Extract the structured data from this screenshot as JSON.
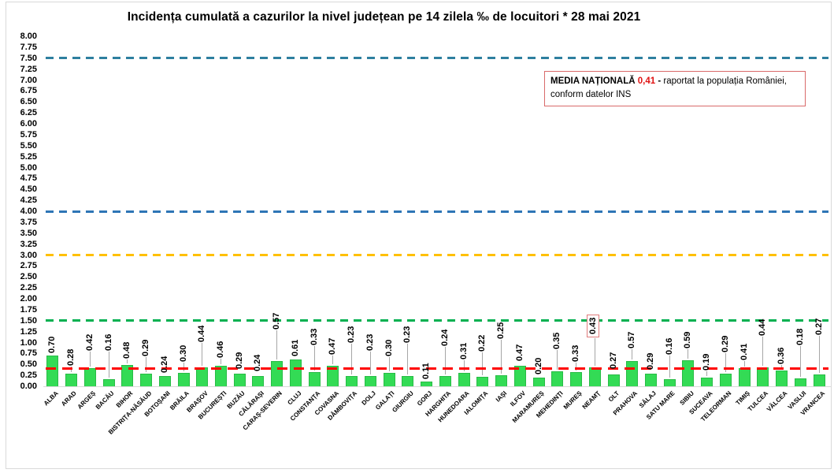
{
  "title": "Incidența cumulată a cazurilor la nivel județean pe 14 zilela ‰ de locuitori *  28 mai 2021",
  "note": {
    "bold": "MEDIA NAȚIONALĂ ",
    "value": "0,41",
    "sep": " - ",
    "rest": "raportat la populația României, conform datelor INS"
  },
  "chart_data": {
    "type": "bar",
    "title": "Incidența cumulată a cazurilor la nivel județean pe 14 zilela ‰ de locuitori *  28 mai 2021",
    "xlabel": "",
    "ylabel": "",
    "ylim": [
      0,
      8
    ],
    "ytick_step": 0.25,
    "grid": false,
    "bar_color": "#33db55",
    "bar_border_color": "#28bb46",
    "categories": [
      "ALBA",
      "ARAD",
      "ARGEȘ",
      "BACĂU",
      "BIHOR",
      "BISTRIȚA-NĂSĂUD",
      "BOTOȘANI",
      "BRĂILA",
      "BRAȘOV",
      "BUCUREȘTI",
      "BUZĂU",
      "CĂLĂRAȘI",
      "CARAȘ-SEVERIN",
      "CLUJ",
      "CONSTANȚA",
      "COVASNA",
      "DÂMBOVIȚA",
      "DOLJ",
      "GALAȚI",
      "GIURGIU",
      "GORJ",
      "HARGHITA",
      "HUNEDOARA",
      "IALOMIȚA",
      "IAȘI",
      "ILFOV",
      "MARAMUREȘ",
      "MEHEDINȚI",
      "MUREȘ",
      "NEAMȚ",
      "OLT",
      "PRAHOVA",
      "SĂLAJ",
      "SATU MARE",
      "SIBIU",
      "SUCEAVA",
      "TELEORMAN",
      "TIMIȘ",
      "TULCEA",
      "VÂLCEA",
      "VASLUI",
      "VRANCEA"
    ],
    "values": [
      0.7,
      0.28,
      0.42,
      0.16,
      0.48,
      0.29,
      0.24,
      0.3,
      0.44,
      0.46,
      0.29,
      0.24,
      0.57,
      0.61,
      0.33,
      0.47,
      0.23,
      0.23,
      0.3,
      0.23,
      0.11,
      0.24,
      0.31,
      0.22,
      0.25,
      0.47,
      0.2,
      0.35,
      0.33,
      0.43,
      0.27,
      0.57,
      0.29,
      0.16,
      0.59,
      0.19,
      0.29,
      0.41,
      0.44,
      0.36,
      0.18,
      0.27
    ],
    "value_label_format": "0.00",
    "highlighted_category": "NEAMȚ",
    "highlight_box_color": "#e07b7b",
    "thresholds": [
      {
        "value": 7.5,
        "color": "#2e7f9f",
        "style": "dashed"
      },
      {
        "value": 4.0,
        "color": "#2e75b6",
        "style": "dashed"
      },
      {
        "value": 3.0,
        "color": "#ffc000",
        "style": "dashed"
      },
      {
        "value": 1.5,
        "color": "#00b050",
        "style": "dashed"
      },
      {
        "value": 0.41,
        "color": "#ff0000",
        "style": "dashed",
        "label": "media națională"
      }
    ],
    "legend": null
  }
}
